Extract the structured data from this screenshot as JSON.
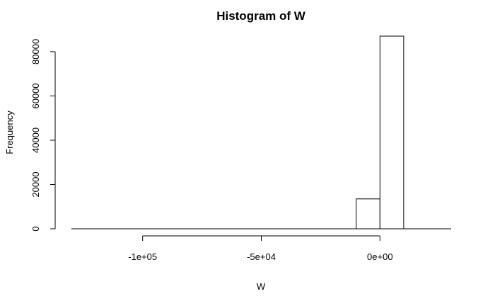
{
  "chart_data": {
    "type": "bar",
    "title": "Histogram of W",
    "xlabel": "W",
    "ylabel": "Frequency",
    "bins": [
      {
        "start": -130000,
        "end": -120000,
        "count": 0
      },
      {
        "start": -120000,
        "end": -110000,
        "count": 0
      },
      {
        "start": -110000,
        "end": -100000,
        "count": 0
      },
      {
        "start": -100000,
        "end": -90000,
        "count": 0
      },
      {
        "start": -90000,
        "end": -80000,
        "count": 0
      },
      {
        "start": -80000,
        "end": -70000,
        "count": 0
      },
      {
        "start": -70000,
        "end": -60000,
        "count": 0
      },
      {
        "start": -60000,
        "end": -50000,
        "count": 0
      },
      {
        "start": -50000,
        "end": -40000,
        "count": 0
      },
      {
        "start": -40000,
        "end": -30000,
        "count": 0
      },
      {
        "start": -30000,
        "end": -20000,
        "count": 0
      },
      {
        "start": -20000,
        "end": -10000,
        "count": 0
      },
      {
        "start": -10000,
        "end": 0,
        "count": 13500
      },
      {
        "start": 0,
        "end": 10000,
        "count": 87000
      },
      {
        "start": 10000,
        "end": 20000,
        "count": 0
      },
      {
        "start": 20000,
        "end": 30000,
        "count": 0
      }
    ],
    "xlim": [
      -130000,
      30000
    ],
    "ylim": [
      0,
      87000
    ],
    "x_ticks": [
      {
        "value": -100000,
        "label": "-1e+05"
      },
      {
        "value": -50000,
        "label": "-5e+04"
      },
      {
        "value": 0,
        "label": "0e+00"
      }
    ],
    "y_ticks": [
      {
        "value": 0,
        "label": "0"
      },
      {
        "value": 20000,
        "label": "20000"
      },
      {
        "value": 40000,
        "label": "40000"
      },
      {
        "value": 60000,
        "label": "60000"
      },
      {
        "value": 80000,
        "label": "80000"
      }
    ],
    "grid": false,
    "legend": "none"
  }
}
